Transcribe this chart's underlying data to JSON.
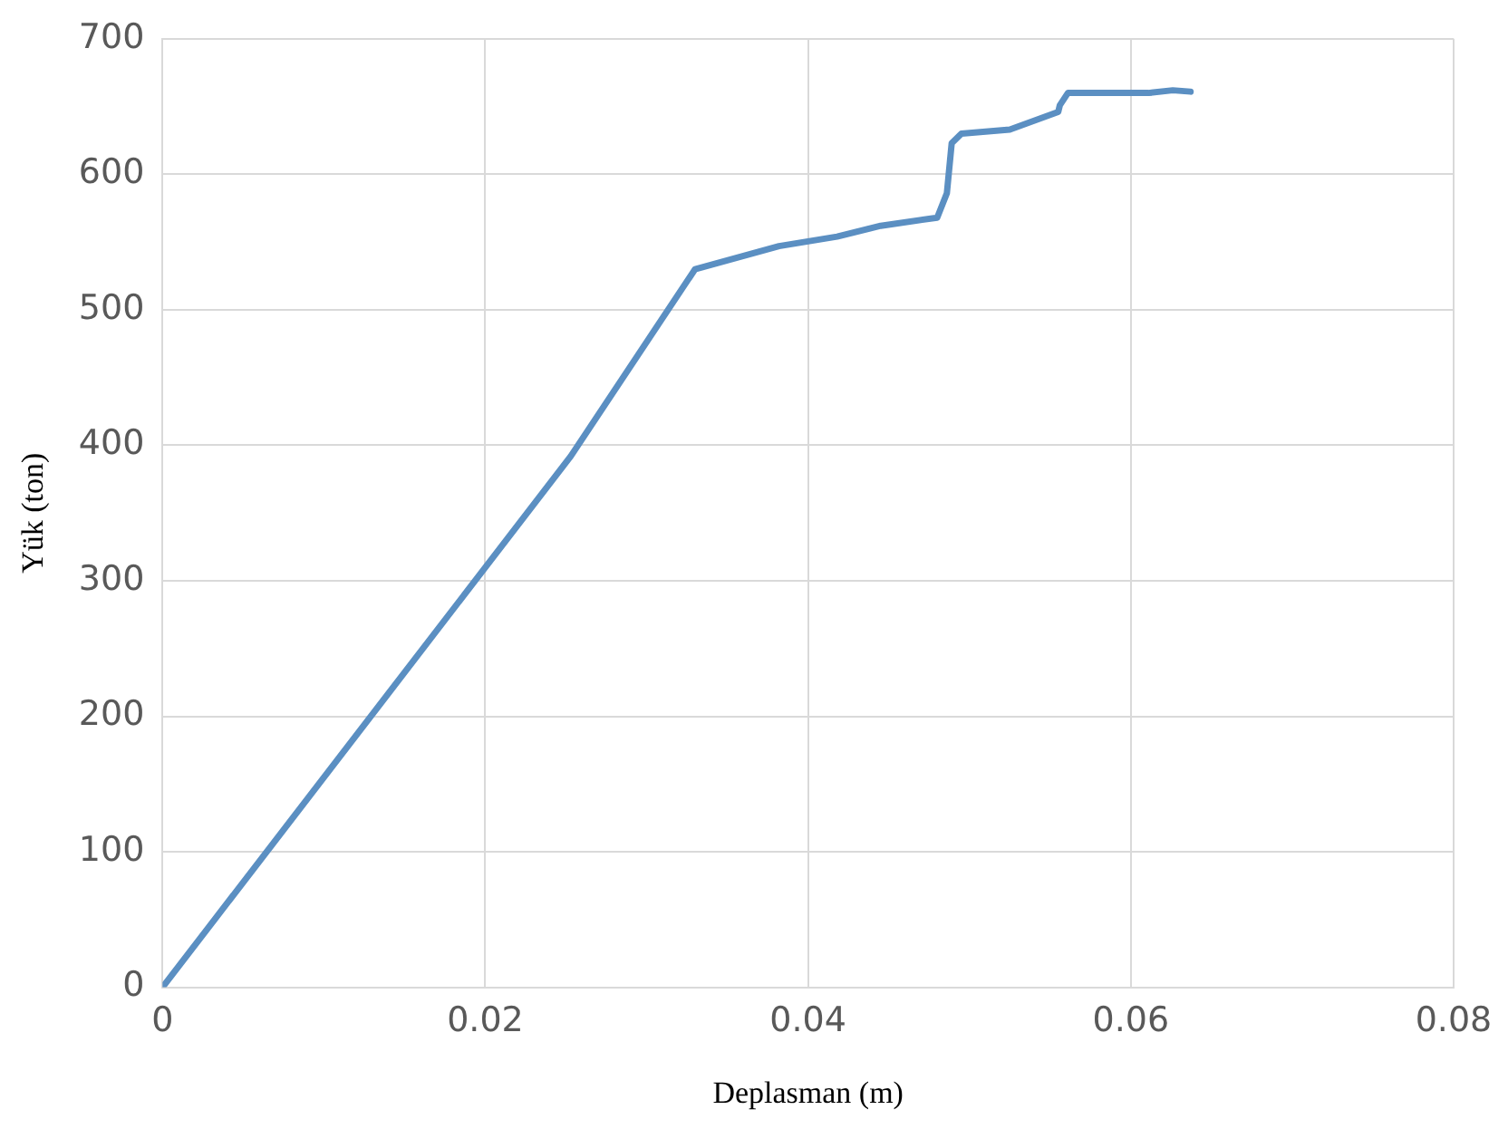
{
  "chart_data": {
    "type": "line",
    "xlabel": "Deplasman (m)",
    "ylabel": "Yük (ton)",
    "series": [
      {
        "color": "#5b8fc2",
        "x": [
          0,
          0.0253,
          0.033,
          0.0382,
          0.0418,
          0.0445,
          0.048,
          0.0486,
          0.0489,
          0.0495,
          0.0525,
          0.0555,
          0.0556,
          0.0561,
          0.0611,
          0.0626,
          0.0637
        ],
        "values": [
          0,
          392,
          530,
          547,
          554,
          562,
          568,
          586,
          623,
          630,
          633,
          646,
          651,
          660,
          660,
          662,
          661
        ]
      }
    ],
    "xlim": [
      0,
      0.08
    ],
    "xticks": [
      0,
      0.02,
      0.04,
      0.06,
      0.08
    ],
    "ylim": [
      0,
      700
    ],
    "yticks": [
      0,
      100,
      200,
      300,
      400,
      500,
      600,
      700
    ],
    "grid": true,
    "legend": false,
    "marker": "none",
    "line_style": "solid"
  }
}
